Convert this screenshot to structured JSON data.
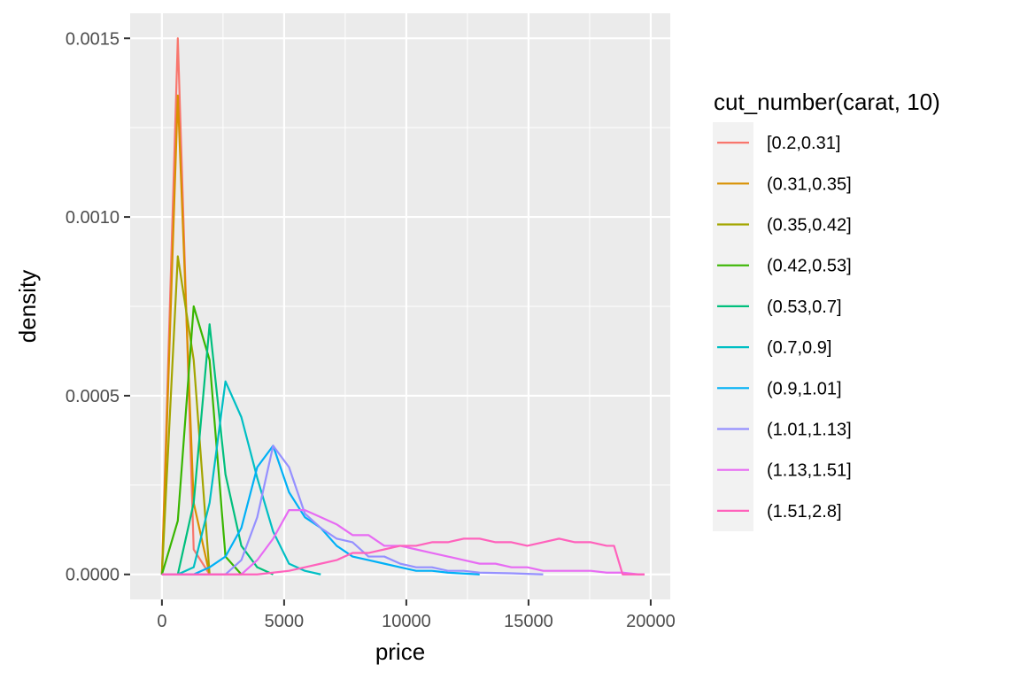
{
  "chart_data": {
    "type": "line",
    "xlabel": "price",
    "ylabel": "density",
    "xlim": [
      -1300,
      20800
    ],
    "ylim": [
      -7e-05,
      0.00157
    ],
    "x_ticks": [
      0,
      5000,
      10000,
      15000,
      20000
    ],
    "x_tick_labels": [
      "0",
      "5000",
      "10000",
      "15000",
      "20000"
    ],
    "y_ticks": [
      0.0,
      0.0005,
      0.001,
      0.0015
    ],
    "y_tick_labels": [
      "0.0000",
      "0.0005",
      "0.0010",
      "0.0015"
    ],
    "grid": true,
    "legend": {
      "title": "cut_number(carat, 10)",
      "placement": "right"
    },
    "series": [
      {
        "name": "[0.2,0.31]",
        "color": "#F8766D",
        "x": [
          0,
          650,
          1300,
          1950
        ],
        "y": [
          0,
          0.0015,
          7e-05,
          0
        ]
      },
      {
        "name": "(0.31,0.35]",
        "color": "#D89000",
        "x": [
          0,
          650,
          1300,
          1950
        ],
        "y": [
          0,
          0.00134,
          0.0002,
          0
        ]
      },
      {
        "name": "(0.35,0.42]",
        "color": "#A3A500",
        "x": [
          0,
          650,
          1300,
          1950
        ],
        "y": [
          0,
          0.00089,
          0.0006,
          0
        ]
      },
      {
        "name": "(0.42,0.53]",
        "color": "#39B600",
        "x": [
          0,
          650,
          1300,
          1950,
          2600,
          3250
        ],
        "y": [
          0,
          0.00015,
          0.00075,
          0.0006,
          5e-05,
          0
        ]
      },
      {
        "name": "(0.53,0.7]",
        "color": "#00BF7D",
        "x": [
          0,
          650,
          1300,
          1950,
          2600,
          3250,
          3900,
          4550
        ],
        "y": [
          0,
          0,
          0.0002,
          0.0007,
          0.00028,
          8e-05,
          2e-05,
          0
        ]
      },
      {
        "name": "(0.7,0.9]",
        "color": "#00BFC4",
        "x": [
          0,
          650,
          1300,
          1950,
          2600,
          3250,
          3900,
          4550,
          5200,
          5850,
          6500
        ],
        "y": [
          0,
          0,
          2e-05,
          0.0002,
          0.00054,
          0.00044,
          0.00027,
          0.00012,
          3e-05,
          1e-05,
          0
        ]
      },
      {
        "name": "(0.9,1.01]",
        "color": "#00B0F6",
        "x": [
          0,
          1300,
          1950,
          2600,
          3250,
          3900,
          4550,
          5200,
          5850,
          6500,
          7150,
          7800,
          8450,
          9100,
          9750,
          10400,
          11050,
          11700,
          13000
        ],
        "y": [
          0,
          0,
          2e-05,
          5e-05,
          0.00013,
          0.0003,
          0.00036,
          0.00023,
          0.00016,
          0.00013,
          8e-05,
          5e-05,
          4e-05,
          3e-05,
          2e-05,
          1e-05,
          1e-05,
          5e-06,
          0
        ]
      },
      {
        "name": "(1.01,1.13]",
        "color": "#9590FF",
        "x": [
          0,
          2600,
          3250,
          3900,
          4550,
          5200,
          5850,
          6500,
          7150,
          7800,
          8450,
          9100,
          9750,
          10400,
          11050,
          11700,
          12350,
          13000,
          14300,
          15600
        ],
        "y": [
          0,
          0,
          4e-05,
          0.00016,
          0.00036,
          0.0003,
          0.00017,
          0.00013,
          0.0001,
          9e-05,
          5e-05,
          5e-05,
          3e-05,
          2e-05,
          2e-05,
          1e-05,
          1e-05,
          5e-06,
          3e-06,
          0
        ]
      },
      {
        "name": "(1.13,1.51]",
        "color": "#E76BF3",
        "x": [
          0,
          3250,
          3900,
          4550,
          5200,
          5850,
          6500,
          7150,
          7800,
          8450,
          9100,
          9750,
          10400,
          11050,
          11700,
          12350,
          13000,
          13650,
          14300,
          14950,
          15600,
          16250,
          16900,
          17550,
          18200,
          18850,
          19500,
          19750
        ],
        "y": [
          0,
          0,
          4e-05,
          0.0001,
          0.00018,
          0.00018,
          0.00016,
          0.00014,
          0.00011,
          0.00011,
          8e-05,
          8e-05,
          7e-05,
          6e-05,
          5e-05,
          4e-05,
          3e-05,
          3e-05,
          2e-05,
          2e-05,
          1e-05,
          1e-05,
          1e-05,
          1e-05,
          5e-06,
          5e-06,
          0,
          0
        ]
      },
      {
        "name": "(1.51,2.8]",
        "color": "#FF62BC",
        "x": [
          0,
          3900,
          4550,
          5200,
          5850,
          6500,
          7150,
          7800,
          8450,
          9100,
          9750,
          10400,
          11050,
          11700,
          12350,
          13000,
          13650,
          14300,
          14950,
          15600,
          16250,
          16900,
          17550,
          18200,
          18500,
          18850,
          19500,
          19750
        ],
        "y": [
          0,
          0,
          5e-06,
          1e-05,
          2e-05,
          3e-05,
          4e-05,
          6e-05,
          6e-05,
          7e-05,
          8e-05,
          8e-05,
          9e-05,
          9e-05,
          0.0001,
          0.0001,
          9e-05,
          9e-05,
          8e-05,
          9e-05,
          0.0001,
          9e-05,
          9e-05,
          8e-05,
          8e-05,
          0,
          0,
          0
        ]
      }
    ]
  }
}
